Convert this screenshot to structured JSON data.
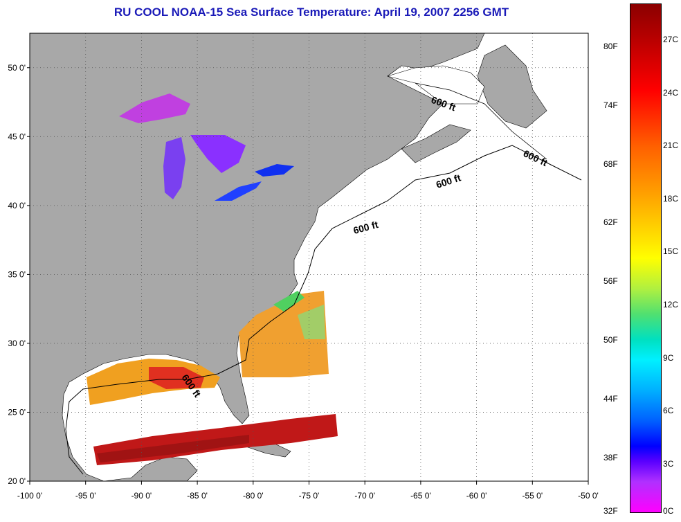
{
  "title": "RU COOL  NOAA-15  Sea Surface Temperature:  April 19, 2007 2256 GMT",
  "map": {
    "lon_range": [
      -100,
      -50
    ],
    "lat_range": [
      20,
      52.5
    ],
    "x_ticks": [
      "-100 0'",
      "-95 0'",
      "-90 0'",
      "-85 0'",
      "-80 0'",
      "-75 0'",
      "-70 0'",
      "-65 0'",
      "-60 0'",
      "-55 0'",
      "-50 0'"
    ],
    "y_ticks": [
      "50 0'",
      "45 0'",
      "40 0'",
      "35 0'",
      "30 0'",
      "25 0'",
      "20 0'"
    ],
    "isobath_labels": [
      "600 ft",
      "600 ft",
      "600 ft",
      "600 ft",
      "600 ft"
    ],
    "colors": {
      "land": "#a8a8a8",
      "ocean": "#ffffff",
      "grid": "#555555"
    }
  },
  "colorbar": {
    "fahrenheit": [
      "80F",
      "74F",
      "68F",
      "62F",
      "56F",
      "50F",
      "44F",
      "38F",
      "32F"
    ],
    "celsius": [
      "27C",
      "24C",
      "21C",
      "18C",
      "15C",
      "12C",
      "9C",
      "6C",
      "3C",
      "0C"
    ]
  }
}
